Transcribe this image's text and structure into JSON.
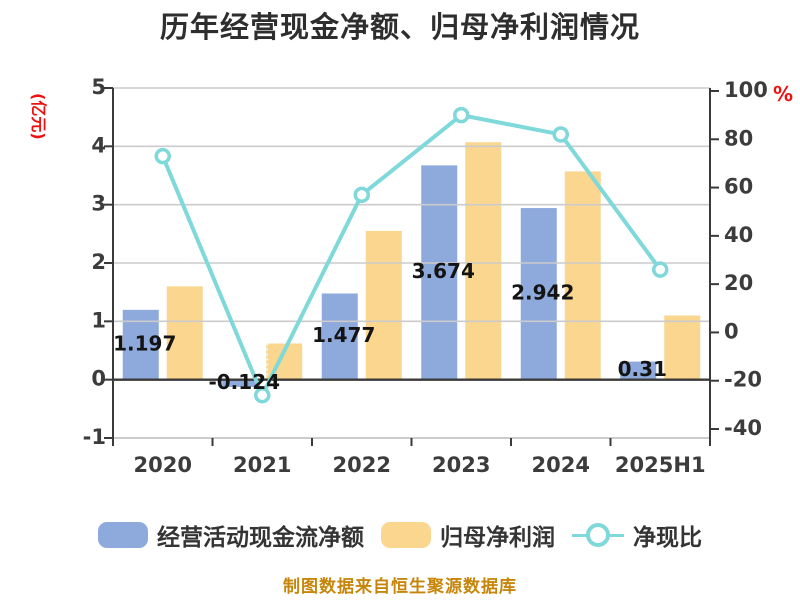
{
  "title": "历年经营现金净额、归母净利润情况",
  "footer": "制图数据来自恒生聚源数据库",
  "axes": {
    "left_unit": "(亿元)",
    "right_unit": "%"
  },
  "legend": {
    "cashflow_label": "经营活动现金流净额",
    "profit_label": "归母净利润",
    "ratio_label": "净现比"
  },
  "colors": {
    "cashflow_bar": "#8ea9db",
    "profit_bar": "#fbd68f",
    "ratio_line": "#7fd8d9",
    "grid": "#cbcbcb",
    "axis": "#3a3a3a",
    "tick_text": "#3c3c3c",
    "value_text": "#141414",
    "unit_text": "#ee1111",
    "footer_text": "#c7860b"
  },
  "chart_data": {
    "type": "bar+line",
    "title": "历年经营现金净额、归母净利润情况",
    "categories": [
      "2020",
      "2021",
      "2022",
      "2023",
      "2024",
      "2025H1"
    ],
    "series": [
      {
        "name": "经营活动现金流净额",
        "type": "bar",
        "axis": "left",
        "color": "#8ea9db",
        "values": [
          1.197,
          -0.124,
          1.477,
          3.674,
          2.942,
          0.31
        ],
        "labels": [
          "1.197",
          "-0.124",
          "1.477",
          "3.674",
          "2.942",
          "0.31"
        ]
      },
      {
        "name": "归母净利润",
        "type": "bar",
        "axis": "left",
        "color": "#fbd68f",
        "values": [
          1.6,
          0.62,
          2.55,
          4.07,
          3.57,
          1.1
        ]
      },
      {
        "name": "净现比",
        "type": "line",
        "axis": "right",
        "color": "#7fd8d9",
        "values": [
          73,
          -26,
          57,
          90,
          82,
          26
        ]
      }
    ],
    "left_axis": {
      "label": "(亿元)",
      "min": -1,
      "max": 5,
      "ticks": [
        -1,
        0,
        1,
        2,
        3,
        4,
        5
      ]
    },
    "right_axis": {
      "label": "%",
      "min": -40,
      "max": 100,
      "ticks": [
        -40,
        -20,
        0,
        20,
        40,
        60,
        80,
        100
      ]
    },
    "grid": true,
    "legend_position": "bottom"
  }
}
